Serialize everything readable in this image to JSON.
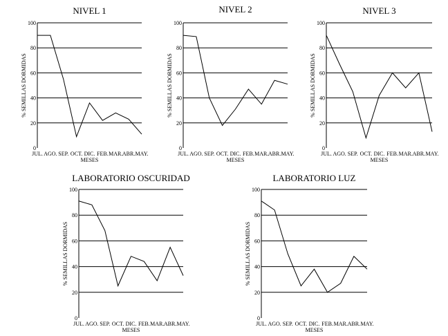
{
  "chart_data": [
    {
      "type": "line",
      "title": "NIVEL 1",
      "xlabel": "MESES",
      "ylabel": "% SEMILLAS DORMIDAS",
      "categories": [
        "JUL.",
        "AGO.",
        "SEP.",
        "OCT.",
        "DIC.",
        "FEB.",
        "MAR.",
        "ABR.",
        "MAY."
      ],
      "yticks": [
        "0",
        "20",
        "40",
        "60",
        "80",
        "100"
      ],
      "ylim": [
        0,
        100
      ],
      "grid": true,
      "values": [
        90,
        90,
        55,
        9,
        36,
        22,
        28,
        23,
        11
      ]
    },
    {
      "type": "line",
      "title": "NIVEL 2",
      "xlabel": "MESES",
      "ylabel": "% SEMILLAS DORMIDAS",
      "categories": [
        "JUL.",
        "AGO.",
        "SEP.",
        "OCT.",
        "DIC.",
        "FEB.",
        "MAR.",
        "ABR.",
        "MAY."
      ],
      "yticks": [
        "0",
        "20",
        "40",
        "60",
        "80",
        "100"
      ],
      "ylim": [
        0,
        100
      ],
      "grid": true,
      "values": [
        90,
        89,
        40,
        18,
        31,
        47,
        35,
        54,
        51
      ]
    },
    {
      "type": "line",
      "title": "NIVEL 3",
      "xlabel": "MESES",
      "ylabel": "% SEMILLAS DORMIDAS",
      "categories": [
        "JUL.",
        "AGO.",
        "SEP.",
        "OCT.",
        "DIC.",
        "FEB.",
        "MAR.",
        "ABR.",
        "MAY."
      ],
      "yticks": [
        "0",
        "20",
        "40",
        "60",
        "80",
        "100"
      ],
      "ylim": [
        0,
        100
      ],
      "grid": true,
      "values": [
        90,
        67,
        45,
        8,
        42,
        60,
        48,
        60,
        13
      ]
    },
    {
      "type": "line",
      "title": "LABORATORIO OSCURIDAD",
      "xlabel": "MESES",
      "ylabel": "% SEMILLAS DORMIDAS",
      "categories": [
        "JUL.",
        "AGO.",
        "SEP.",
        "OCT.",
        "DIC.",
        "FEB.",
        "MAR.",
        "ABR.",
        "MAY."
      ],
      "yticks": [
        "0",
        "20",
        "40",
        "60",
        "80",
        "100"
      ],
      "ylim": [
        0,
        100
      ],
      "grid": true,
      "values": [
        91,
        88,
        68,
        25,
        48,
        44,
        29,
        55,
        33
      ]
    },
    {
      "type": "line",
      "title": "LABORATORIO LUZ",
      "xlabel": "MESES",
      "ylabel": "% SEMILLAS DORMIDAS",
      "categories": [
        "JUL.",
        "AGO.",
        "SEP.",
        "OCT.",
        "DIC.",
        "FEB.",
        "MAR.",
        "ABR.",
        "MAY."
      ],
      "yticks": [
        "0",
        "20",
        "40",
        "60",
        "80",
        "100"
      ],
      "ylim": [
        0,
        100
      ],
      "grid": true,
      "values": [
        91,
        84,
        50,
        25,
        38,
        20,
        27,
        48,
        38
      ]
    }
  ]
}
